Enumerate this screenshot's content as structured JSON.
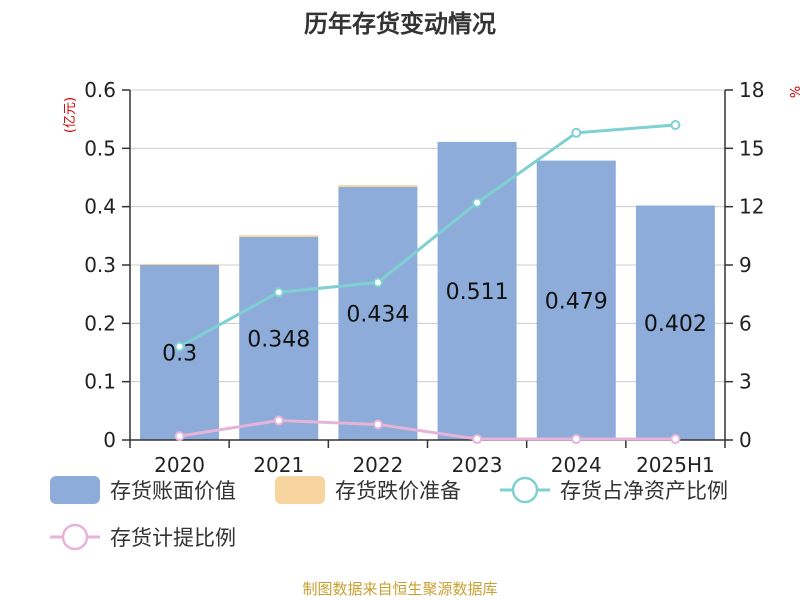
{
  "chart_data": {
    "type": "bar",
    "title": "历年存货变动情况",
    "categories": [
      "2020",
      "2021",
      "2022",
      "2023",
      "2024",
      "2025H1"
    ],
    "left_axis": {
      "unit": "(亿元)",
      "ylim": [
        0,
        0.6
      ],
      "ticks": [
        "0",
        "0.1",
        "0.2",
        "0.3",
        "0.4",
        "0.5",
        "0.6"
      ]
    },
    "right_axis": {
      "unit": "%",
      "ylim": [
        0,
        18
      ],
      "ticks": [
        "0",
        "3",
        "6",
        "9",
        "12",
        "15",
        "18"
      ]
    },
    "series": [
      {
        "name": "存货账面价值",
        "type": "bar",
        "axis": "left",
        "color": "#8eacd9",
        "values": [
          0.3,
          0.348,
          0.434,
          0.511,
          0.479,
          0.402
        ],
        "labels": [
          "0.3",
          "0.348",
          "0.434",
          "0.511",
          "0.479",
          "0.402"
        ]
      },
      {
        "name": "存货跌价准备",
        "type": "bar",
        "axis": "left",
        "color": "#f7d49e",
        "values": [
          0.002,
          0.003,
          0.003,
          0,
          0,
          0
        ]
      },
      {
        "name": "存货占净资产比例",
        "type": "line",
        "axis": "right",
        "color": "#7fd0d2",
        "values": [
          4.8,
          7.6,
          8.1,
          12.2,
          15.8,
          16.2
        ]
      },
      {
        "name": "存货计提比例",
        "type": "line",
        "axis": "right",
        "color": "#e6b4d9",
        "values": [
          0.2,
          1.0,
          0.8,
          0.05,
          0.05,
          0.05
        ]
      }
    ],
    "grid": true,
    "legend_position": "bottom",
    "source": "制图数据来自恒生聚源数据库"
  }
}
